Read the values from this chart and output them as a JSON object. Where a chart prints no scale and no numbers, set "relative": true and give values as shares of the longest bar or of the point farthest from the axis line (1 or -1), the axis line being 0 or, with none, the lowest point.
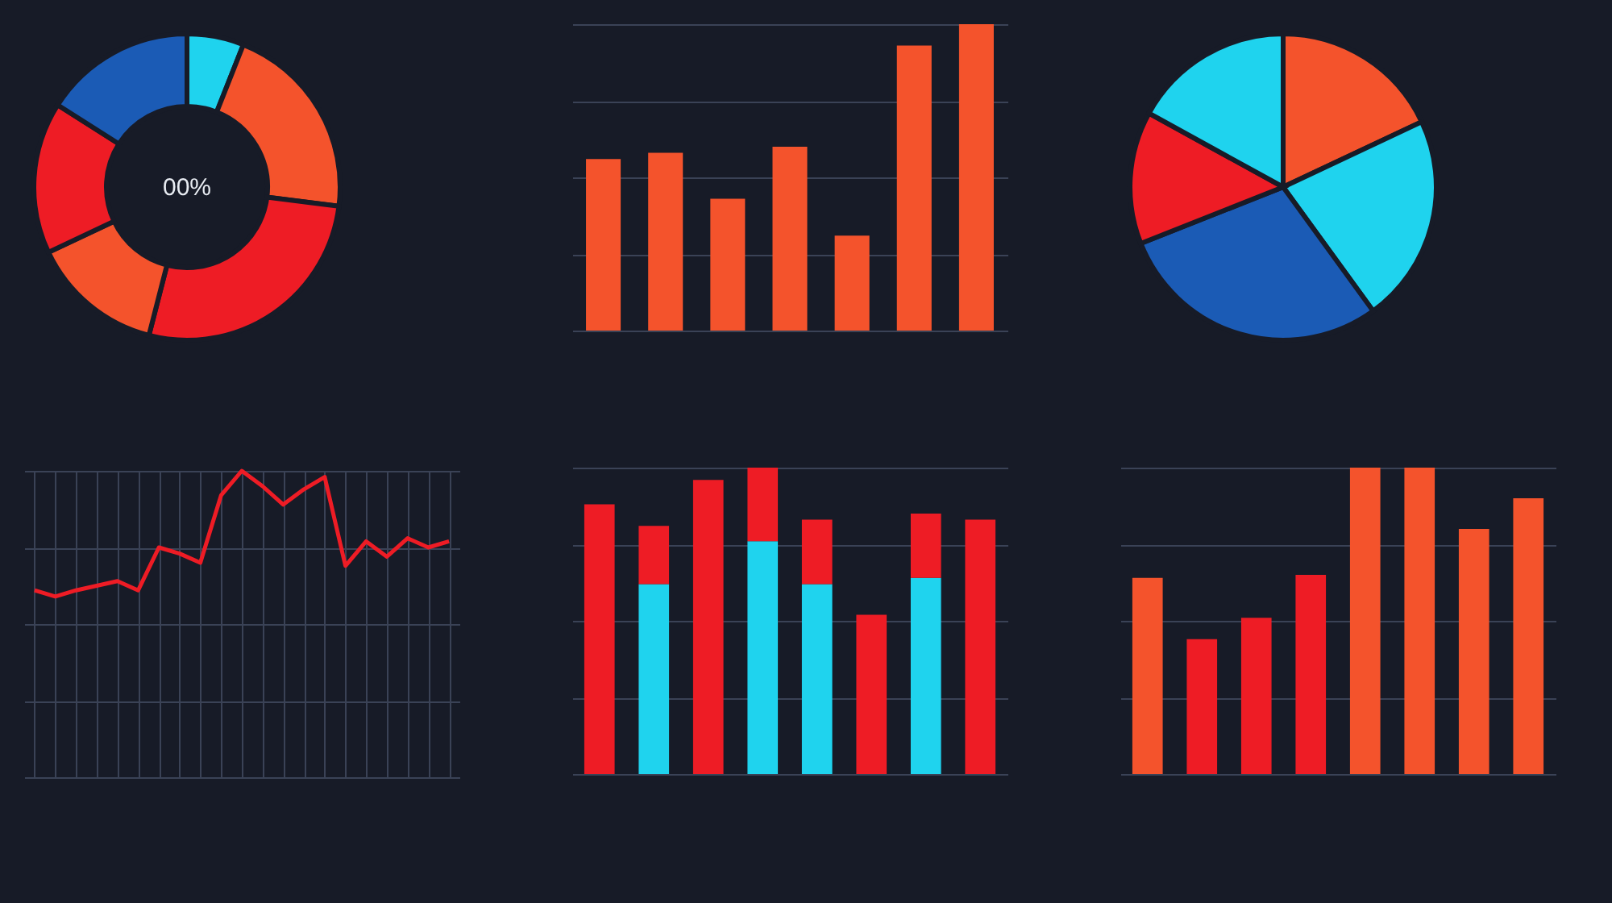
{
  "chart_data": [
    {
      "type": "donut",
      "categories": [
        null,
        null,
        null,
        null,
        null,
        null
      ],
      "values": [
        6,
        21,
        27,
        14,
        16,
        16
      ],
      "colors": [
        "#1fd3ee",
        "#f4532c",
        "#ee1c25",
        "#f4532c",
        "#ee1c25",
        "#1b5bb5"
      ],
      "annotations": [
        "00%"
      ]
    },
    {
      "type": "bar",
      "relative": true,
      "grid": "y",
      "categories": [
        null,
        null,
        null,
        null,
        null,
        null,
        null
      ],
      "values": [
        0.56,
        0.58,
        0.43,
        0.6,
        0.31,
        0.93,
        1.0
      ],
      "color": "#f4532c"
    },
    {
      "type": "pie",
      "categories": [
        null,
        null,
        null,
        null,
        null
      ],
      "values": [
        18,
        22,
        29,
        14,
        17
      ],
      "colors": [
        "#f4532c",
        "#1fd3ee",
        "#1b5bb5",
        "#ee1c25",
        "#1fd3ee"
      ]
    },
    {
      "type": "line",
      "relative": true,
      "grid": true,
      "categories": [
        null,
        null,
        null,
        null,
        null,
        null,
        null,
        null,
        null,
        null,
        null,
        null,
        null,
        null,
        null,
        null,
        null,
        null,
        null,
        null,
        null
      ],
      "values": [
        0.61,
        0.59,
        0.61,
        0.625,
        0.64,
        0.61,
        0.75,
        0.73,
        0.7,
        0.92,
        1.0,
        0.95,
        0.89,
        0.94,
        0.98,
        0.69,
        0.77,
        0.72,
        0.78,
        0.75,
        0.77
      ],
      "color": "#ee1c25"
    },
    {
      "type": "bar",
      "relative": true,
      "stacked": true,
      "grid": "y",
      "categories": [
        null,
        null,
        null,
        null,
        null,
        null,
        null,
        null
      ],
      "series": [
        {
          "color": "#1fd3ee",
          "values": [
            0,
            0.62,
            0,
            0.76,
            0.62,
            0,
            0.64,
            0
          ]
        },
        {
          "color": "#ee1c25",
          "values": [
            0.88,
            0.19,
            0.96,
            0.24,
            0.21,
            0.52,
            0.21,
            0.83
          ]
        }
      ]
    },
    {
      "type": "bar",
      "relative": true,
      "grid": "y",
      "categories": [
        null,
        null,
        null,
        null,
        null,
        null,
        null,
        null
      ],
      "values": [
        0.64,
        0.44,
        0.51,
        0.65,
        1.0,
        1.0,
        0.8,
        0.9
      ],
      "colors": [
        "#f4532c",
        "#ee1c25",
        "#ee1c25",
        "#ee1c25",
        "#f4532c",
        "#f4532c",
        "#f4532c",
        "#f4532c"
      ]
    }
  ]
}
